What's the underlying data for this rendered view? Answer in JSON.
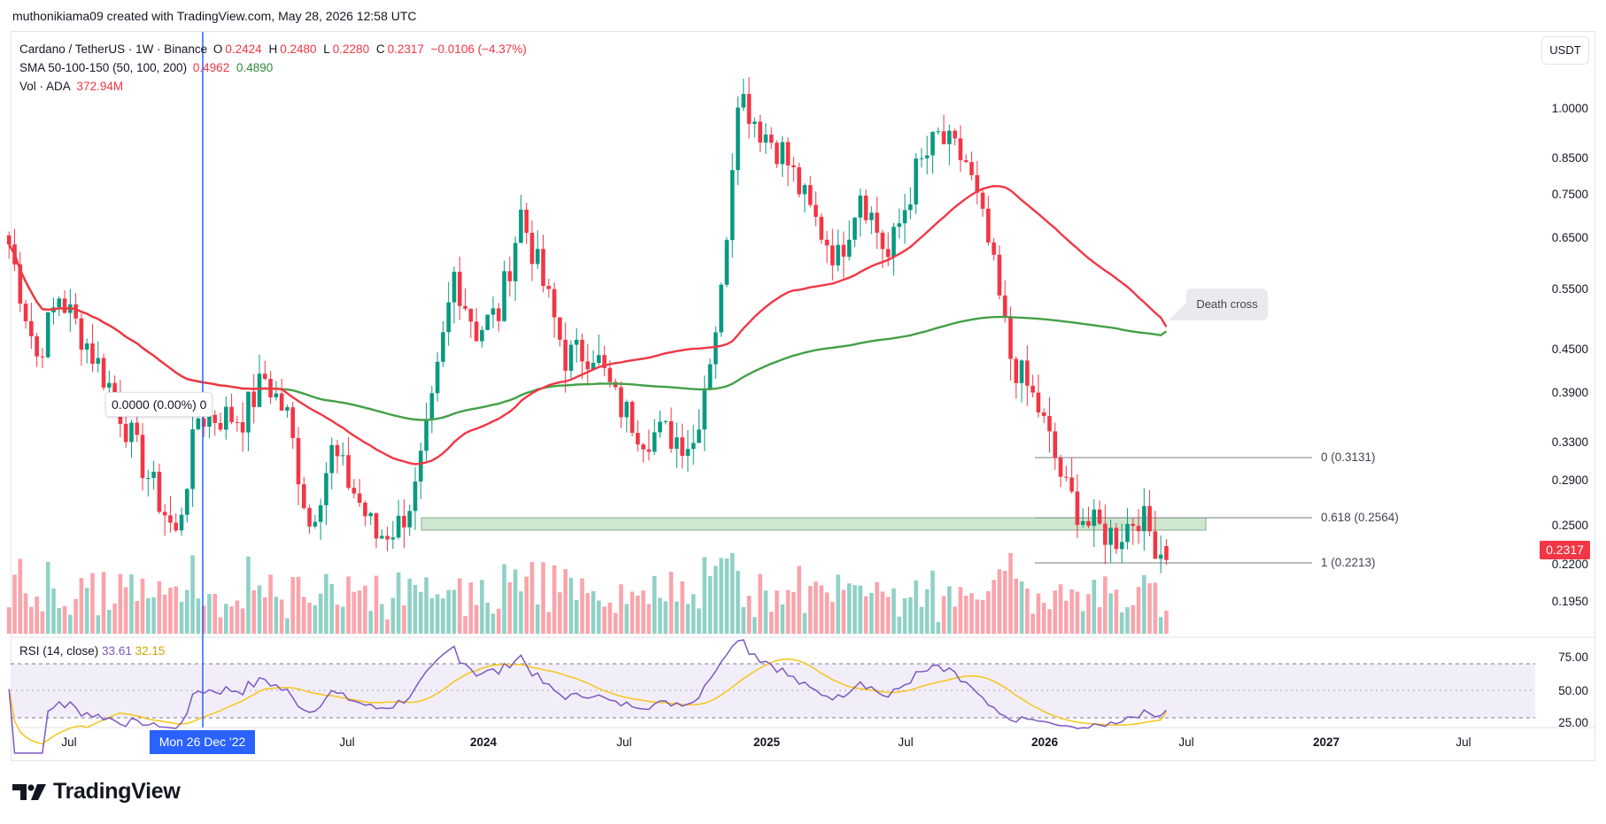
{
  "header": {
    "text": "muthonikiama09 created with TradingView.com, May 28, 2026 12:58 UTC"
  },
  "legend": {
    "symbol": "Cardano / TetherUS · 1W · Binance",
    "open_label": "O",
    "open": "0.2424",
    "high_label": "H",
    "high": "0.2480",
    "low_label": "L",
    "low": "0.2280",
    "close_label": "C",
    "close": "0.2317",
    "change": "−0.0106 (−4.37%)",
    "sma_label": "SMA 50-100-150 (50, 100, 200)",
    "sma_val1": "0.4962",
    "sma_val2": "0.4890",
    "vol_label": "Vol · ADA",
    "vol_val": "372.94M"
  },
  "currency_button": "USDT",
  "rsi": {
    "label": "RSI (14, close)",
    "value": "33.61",
    "ma_value": "32.15",
    "ticks": [
      "75.00",
      "50.00",
      "25.00"
    ]
  },
  "price_axis": {
    "ticks": [
      "1.0000",
      "0.8500",
      "0.7500",
      "0.6500",
      "0.5500",
      "0.4500",
      "0.3900",
      "0.3300",
      "0.2900",
      "0.2500",
      "0.2200",
      "0.1950"
    ],
    "current_price": "0.2317"
  },
  "time_axis": {
    "labels": [
      "Jul",
      "2024",
      "Jul",
      "2025",
      "Jul",
      "2026",
      "Jul",
      "2027",
      "Jul"
    ],
    "crosshair_label": "Mon 26 Dec '22",
    "first_label": "Jul"
  },
  "fib": {
    "level0": "0 (0.3131)",
    "level618": "0.618 (0.2564)",
    "level1": "1 (0.2213)"
  },
  "measure": {
    "text": "0.0000 (0.00%) 0"
  },
  "annotation": {
    "death_cross": "Death cross"
  },
  "brand": {
    "name": "TradingView"
  },
  "colors": {
    "up": "#089981",
    "down": "#f23645",
    "sma_fast": "#f23645",
    "sma_slow": "#43a047",
    "rsi": "#7e57c2",
    "rsi_ma": "#f5c518",
    "crosshair": "#2962ff",
    "zone_fill": "#c8e6c9"
  },
  "chart_data": {
    "type": "candlestick",
    "title": "Cardano / TetherUS · 1W · Binance",
    "interval": "1W",
    "y_scale": "log",
    "ylim": [
      0.18,
      1.3
    ],
    "x_range": [
      "2022-06",
      "2027-09"
    ],
    "series": [
      {
        "name": "ADA/USDT weekly close (approx.)",
        "points": [
          [
            "2022-05-30",
            0.65
          ],
          [
            "2022-07-04",
            0.45
          ],
          [
            "2022-08-01",
            0.55
          ],
          [
            "2022-09-05",
            0.47
          ],
          [
            "2022-10-03",
            0.41
          ],
          [
            "2022-11-07",
            0.33
          ],
          [
            "2022-12-26",
            0.25
          ],
          [
            "2023-01-23",
            0.37
          ],
          [
            "2023-02-20",
            0.37
          ],
          [
            "2023-03-20",
            0.37
          ],
          [
            "2023-04-17",
            0.42
          ],
          [
            "2023-05-15",
            0.37
          ],
          [
            "2023-06-12",
            0.26
          ],
          [
            "2023-07-10",
            0.33
          ],
          [
            "2023-08-07",
            0.29
          ],
          [
            "2023-09-04",
            0.25
          ],
          [
            "2023-10-02",
            0.26
          ],
          [
            "2023-10-23",
            0.29
          ],
          [
            "2023-11-13",
            0.38
          ],
          [
            "2023-12-11",
            0.59
          ],
          [
            "2024-01-08",
            0.49
          ],
          [
            "2024-02-05",
            0.52
          ],
          [
            "2024-03-04",
            0.72
          ],
          [
            "2024-04-01",
            0.57
          ],
          [
            "2024-04-29",
            0.45
          ],
          [
            "2024-06-03",
            0.46
          ],
          [
            "2024-07-01",
            0.39
          ],
          [
            "2024-08-05",
            0.35
          ],
          [
            "2024-09-02",
            0.35
          ],
          [
            "2024-10-07",
            0.34
          ],
          [
            "2024-11-11",
            0.55
          ],
          [
            "2024-12-02",
            1.08
          ],
          [
            "2024-12-30",
            0.95
          ],
          [
            "2025-01-27",
            0.88
          ],
          [
            "2025-03-03",
            0.72
          ],
          [
            "2025-04-07",
            0.62
          ],
          [
            "2025-05-05",
            0.78
          ],
          [
            "2025-06-09",
            0.62
          ],
          [
            "2025-07-14",
            0.82
          ],
          [
            "2025-08-11",
            0.92
          ],
          [
            "2025-09-15",
            0.85
          ],
          [
            "2025-10-13",
            0.65
          ],
          [
            "2025-11-10",
            0.45
          ],
          [
            "2025-12-15",
            0.38
          ],
          [
            "2026-01-19",
            0.29
          ],
          [
            "2026-02-16",
            0.26
          ],
          [
            "2026-03-23",
            0.25
          ],
          [
            "2026-04-20",
            0.27
          ],
          [
            "2026-05-25",
            0.2317
          ]
        ]
      },
      {
        "name": "SMA 50",
        "last": 0.4962
      },
      {
        "name": "SMA 200",
        "last": 0.489
      }
    ],
    "last_bar": {
      "open": 0.2424,
      "high": 0.248,
      "low": 0.228,
      "close": 0.2317
    },
    "fib_levels": [
      {
        "level": "0",
        "price": 0.3131
      },
      {
        "level": "0.618",
        "price": 0.2564
      },
      {
        "level": "1",
        "price": 0.2213
      }
    ],
    "rsi": {
      "length": 14,
      "value": 33.61,
      "ma": 32.15,
      "ylim": [
        20,
        85
      ]
    },
    "legend": "top-left"
  }
}
